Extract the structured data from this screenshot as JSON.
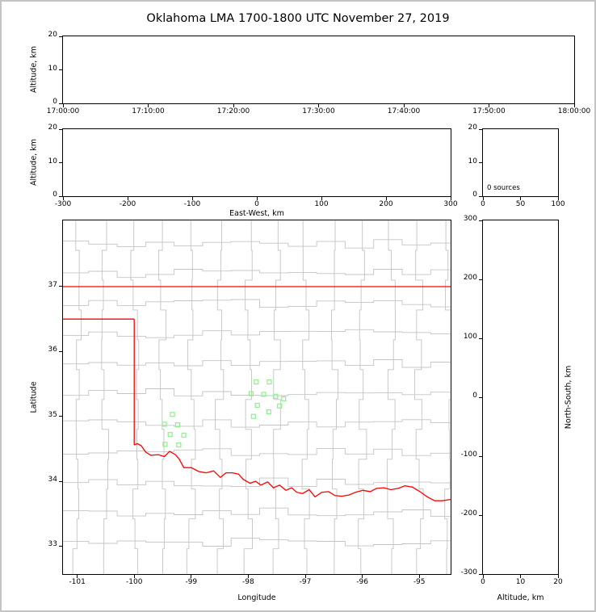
{
  "title": "Oklahoma LMA 1700-1800 UTC November 27, 2019",
  "colors": {
    "state_boundary": "#ff0000",
    "county_lines": "#c4c4c4",
    "station_marker": "#90EE90",
    "axis": "#000000",
    "frame_border": "#c4c4c4",
    "background": "#ffffff"
  },
  "chart_data": [
    {
      "id": "time-height",
      "type": "scatter",
      "xlabel": "",
      "ylabel": "Altitude, km",
      "x_tick_labels": [
        "17:00:00",
        "17:10:00",
        "17:20:00",
        "17:30:00",
        "17:40:00",
        "17:50:00",
        "18:00:00"
      ],
      "y_ticks": [
        0,
        10,
        20
      ],
      "ylim": [
        0,
        20
      ],
      "points": []
    },
    {
      "id": "east-west-height",
      "type": "scatter",
      "xlabel": "East-West, km",
      "ylabel": "Altitude, km",
      "x_ticks": [
        -300,
        -200,
        -100,
        0,
        100,
        200,
        300
      ],
      "xlim": [
        -300,
        300
      ],
      "y_ticks": [
        0,
        10,
        20
      ],
      "ylim": [
        0,
        20
      ],
      "points": []
    },
    {
      "id": "altitude-histogram",
      "type": "line",
      "annotation": "0 sources",
      "x_ticks": [
        0,
        50,
        100
      ],
      "xlim": [
        0,
        100
      ],
      "y_ticks": [
        0,
        10,
        20
      ],
      "ylim": [
        0,
        20
      ],
      "points": []
    },
    {
      "id": "plan-view-map",
      "type": "scatter",
      "xlabel": "Longitude",
      "ylabel": "Latitude",
      "x_ticks": [
        -101,
        -100,
        -99,
        -98,
        -97,
        -96,
        -95
      ],
      "xlim": [
        -101.25,
        -94.45
      ],
      "y_ticks": [
        33,
        34,
        35,
        36,
        37
      ],
      "ylim": [
        32.57,
        38.02
      ],
      "marker": "open-square",
      "marker_color": "#90EE90",
      "stations_lon_lat": [
        [
          -99.33,
          35.03
        ],
        [
          -99.47,
          34.88
        ],
        [
          -99.24,
          34.87
        ],
        [
          -99.37,
          34.72
        ],
        [
          -99.13,
          34.71
        ],
        [
          -99.46,
          34.57
        ],
        [
          -99.22,
          34.56
        ],
        [
          -97.86,
          35.53
        ],
        [
          -97.63,
          35.53
        ],
        [
          -97.95,
          35.35
        ],
        [
          -97.73,
          35.34
        ],
        [
          -97.52,
          35.31
        ],
        [
          -97.38,
          35.27
        ],
        [
          -97.84,
          35.17
        ],
        [
          -97.45,
          35.16
        ],
        [
          -97.64,
          35.07
        ],
        [
          -97.91,
          35.0
        ]
      ],
      "state_boundary_segments": [
        [
          [
            -101.25,
            37.0
          ],
          [
            -94.45,
            37.0
          ]
        ],
        [
          [
            -101.25,
            36.5
          ],
          [
            -100.0,
            36.5
          ]
        ],
        [
          [
            -100.0,
            36.5
          ],
          [
            -100.0,
            34.56
          ]
        ],
        [
          [
            -100.0,
            34.56
          ],
          [
            -99.95,
            34.58
          ],
          [
            -99.88,
            34.55
          ],
          [
            -99.8,
            34.45
          ],
          [
            -99.71,
            34.4
          ],
          [
            -99.58,
            34.41
          ],
          [
            -99.47,
            34.38
          ],
          [
            -99.38,
            34.46
          ],
          [
            -99.28,
            34.41
          ],
          [
            -99.21,
            34.34
          ],
          [
            -99.13,
            34.21
          ],
          [
            -99.0,
            34.21
          ],
          [
            -98.87,
            34.15
          ],
          [
            -98.74,
            34.13
          ],
          [
            -98.61,
            34.16
          ],
          [
            -98.49,
            34.06
          ],
          [
            -98.39,
            34.13
          ],
          [
            -98.28,
            34.13
          ],
          [
            -98.17,
            34.11
          ],
          [
            -98.09,
            34.03
          ],
          [
            -97.97,
            33.97
          ],
          [
            -97.87,
            34.0
          ],
          [
            -97.78,
            33.94
          ],
          [
            -97.66,
            33.99
          ],
          [
            -97.56,
            33.9
          ],
          [
            -97.45,
            33.94
          ],
          [
            -97.34,
            33.86
          ],
          [
            -97.24,
            33.9
          ],
          [
            -97.15,
            33.83
          ],
          [
            -97.05,
            33.81
          ],
          [
            -96.93,
            33.87
          ],
          [
            -96.83,
            33.76
          ],
          [
            -96.71,
            33.83
          ],
          [
            -96.59,
            33.84
          ],
          [
            -96.48,
            33.78
          ],
          [
            -96.36,
            33.77
          ],
          [
            -96.23,
            33.79
          ],
          [
            -96.12,
            33.83
          ],
          [
            -95.99,
            33.86
          ],
          [
            -95.86,
            33.84
          ],
          [
            -95.75,
            33.89
          ],
          [
            -95.62,
            33.9
          ],
          [
            -95.5,
            33.87
          ],
          [
            -95.37,
            33.89
          ],
          [
            -95.25,
            33.93
          ],
          [
            -95.12,
            33.91
          ],
          [
            -94.99,
            33.84
          ],
          [
            -94.86,
            33.76
          ],
          [
            -94.73,
            33.7
          ],
          [
            -94.6,
            33.7
          ],
          [
            -94.45,
            33.72
          ]
        ]
      ]
    },
    {
      "id": "north-south-height",
      "type": "scatter",
      "xlabel": "Altitude, km",
      "ylabel": "North-South, km",
      "x_ticks": [
        0,
        10,
        20
      ],
      "xlim": [
        0,
        20
      ],
      "y_ticks": [
        -300,
        -200,
        -100,
        0,
        100,
        200,
        300
      ],
      "ylim": [
        -300,
        300
      ],
      "points": []
    }
  ]
}
